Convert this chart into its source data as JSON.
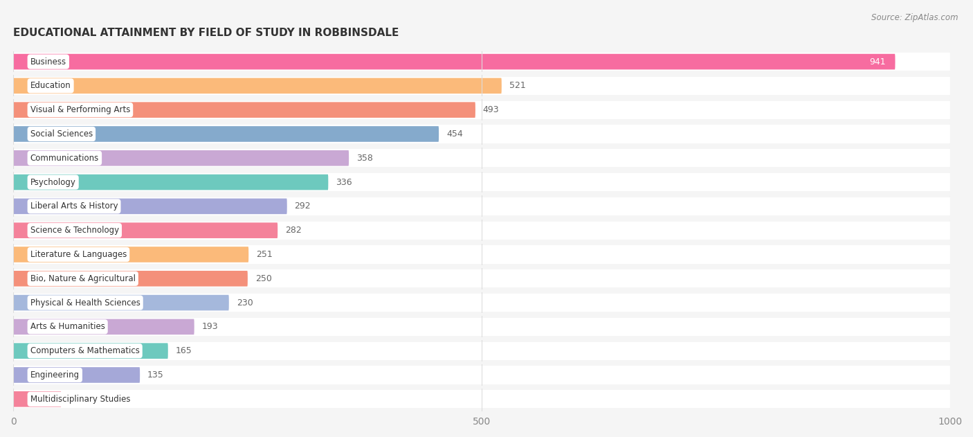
{
  "title": "EDUCATIONAL ATTAINMENT BY FIELD OF STUDY IN ROBBINSDALE",
  "source": "Source: ZipAtlas.com",
  "categories": [
    "Business",
    "Education",
    "Visual & Performing Arts",
    "Social Sciences",
    "Communications",
    "Psychology",
    "Liberal Arts & History",
    "Science & Technology",
    "Literature & Languages",
    "Bio, Nature & Agricultural",
    "Physical & Health Sciences",
    "Arts & Humanities",
    "Computers & Mathematics",
    "Engineering",
    "Multidisciplinary Studies"
  ],
  "values": [
    941,
    521,
    493,
    454,
    358,
    336,
    292,
    282,
    251,
    250,
    230,
    193,
    165,
    135,
    51
  ],
  "bar_colors": [
    "#F76CA0",
    "#FBBA7A",
    "#F4907A",
    "#85AACC",
    "#C9A8D4",
    "#6DC9BE",
    "#A5A8D8",
    "#F4829A",
    "#FBBA7A",
    "#F4907A",
    "#A5B8DC",
    "#C9A8D4",
    "#6DC9BE",
    "#A5A8D8",
    "#F4829A"
  ],
  "xlim": [
    0,
    1000
  ],
  "xticks": [
    0,
    500,
    1000
  ],
  "background_color": "#f5f5f5",
  "row_bg_color": "#ffffff",
  "title_fontsize": 11,
  "bar_height": 0.65
}
